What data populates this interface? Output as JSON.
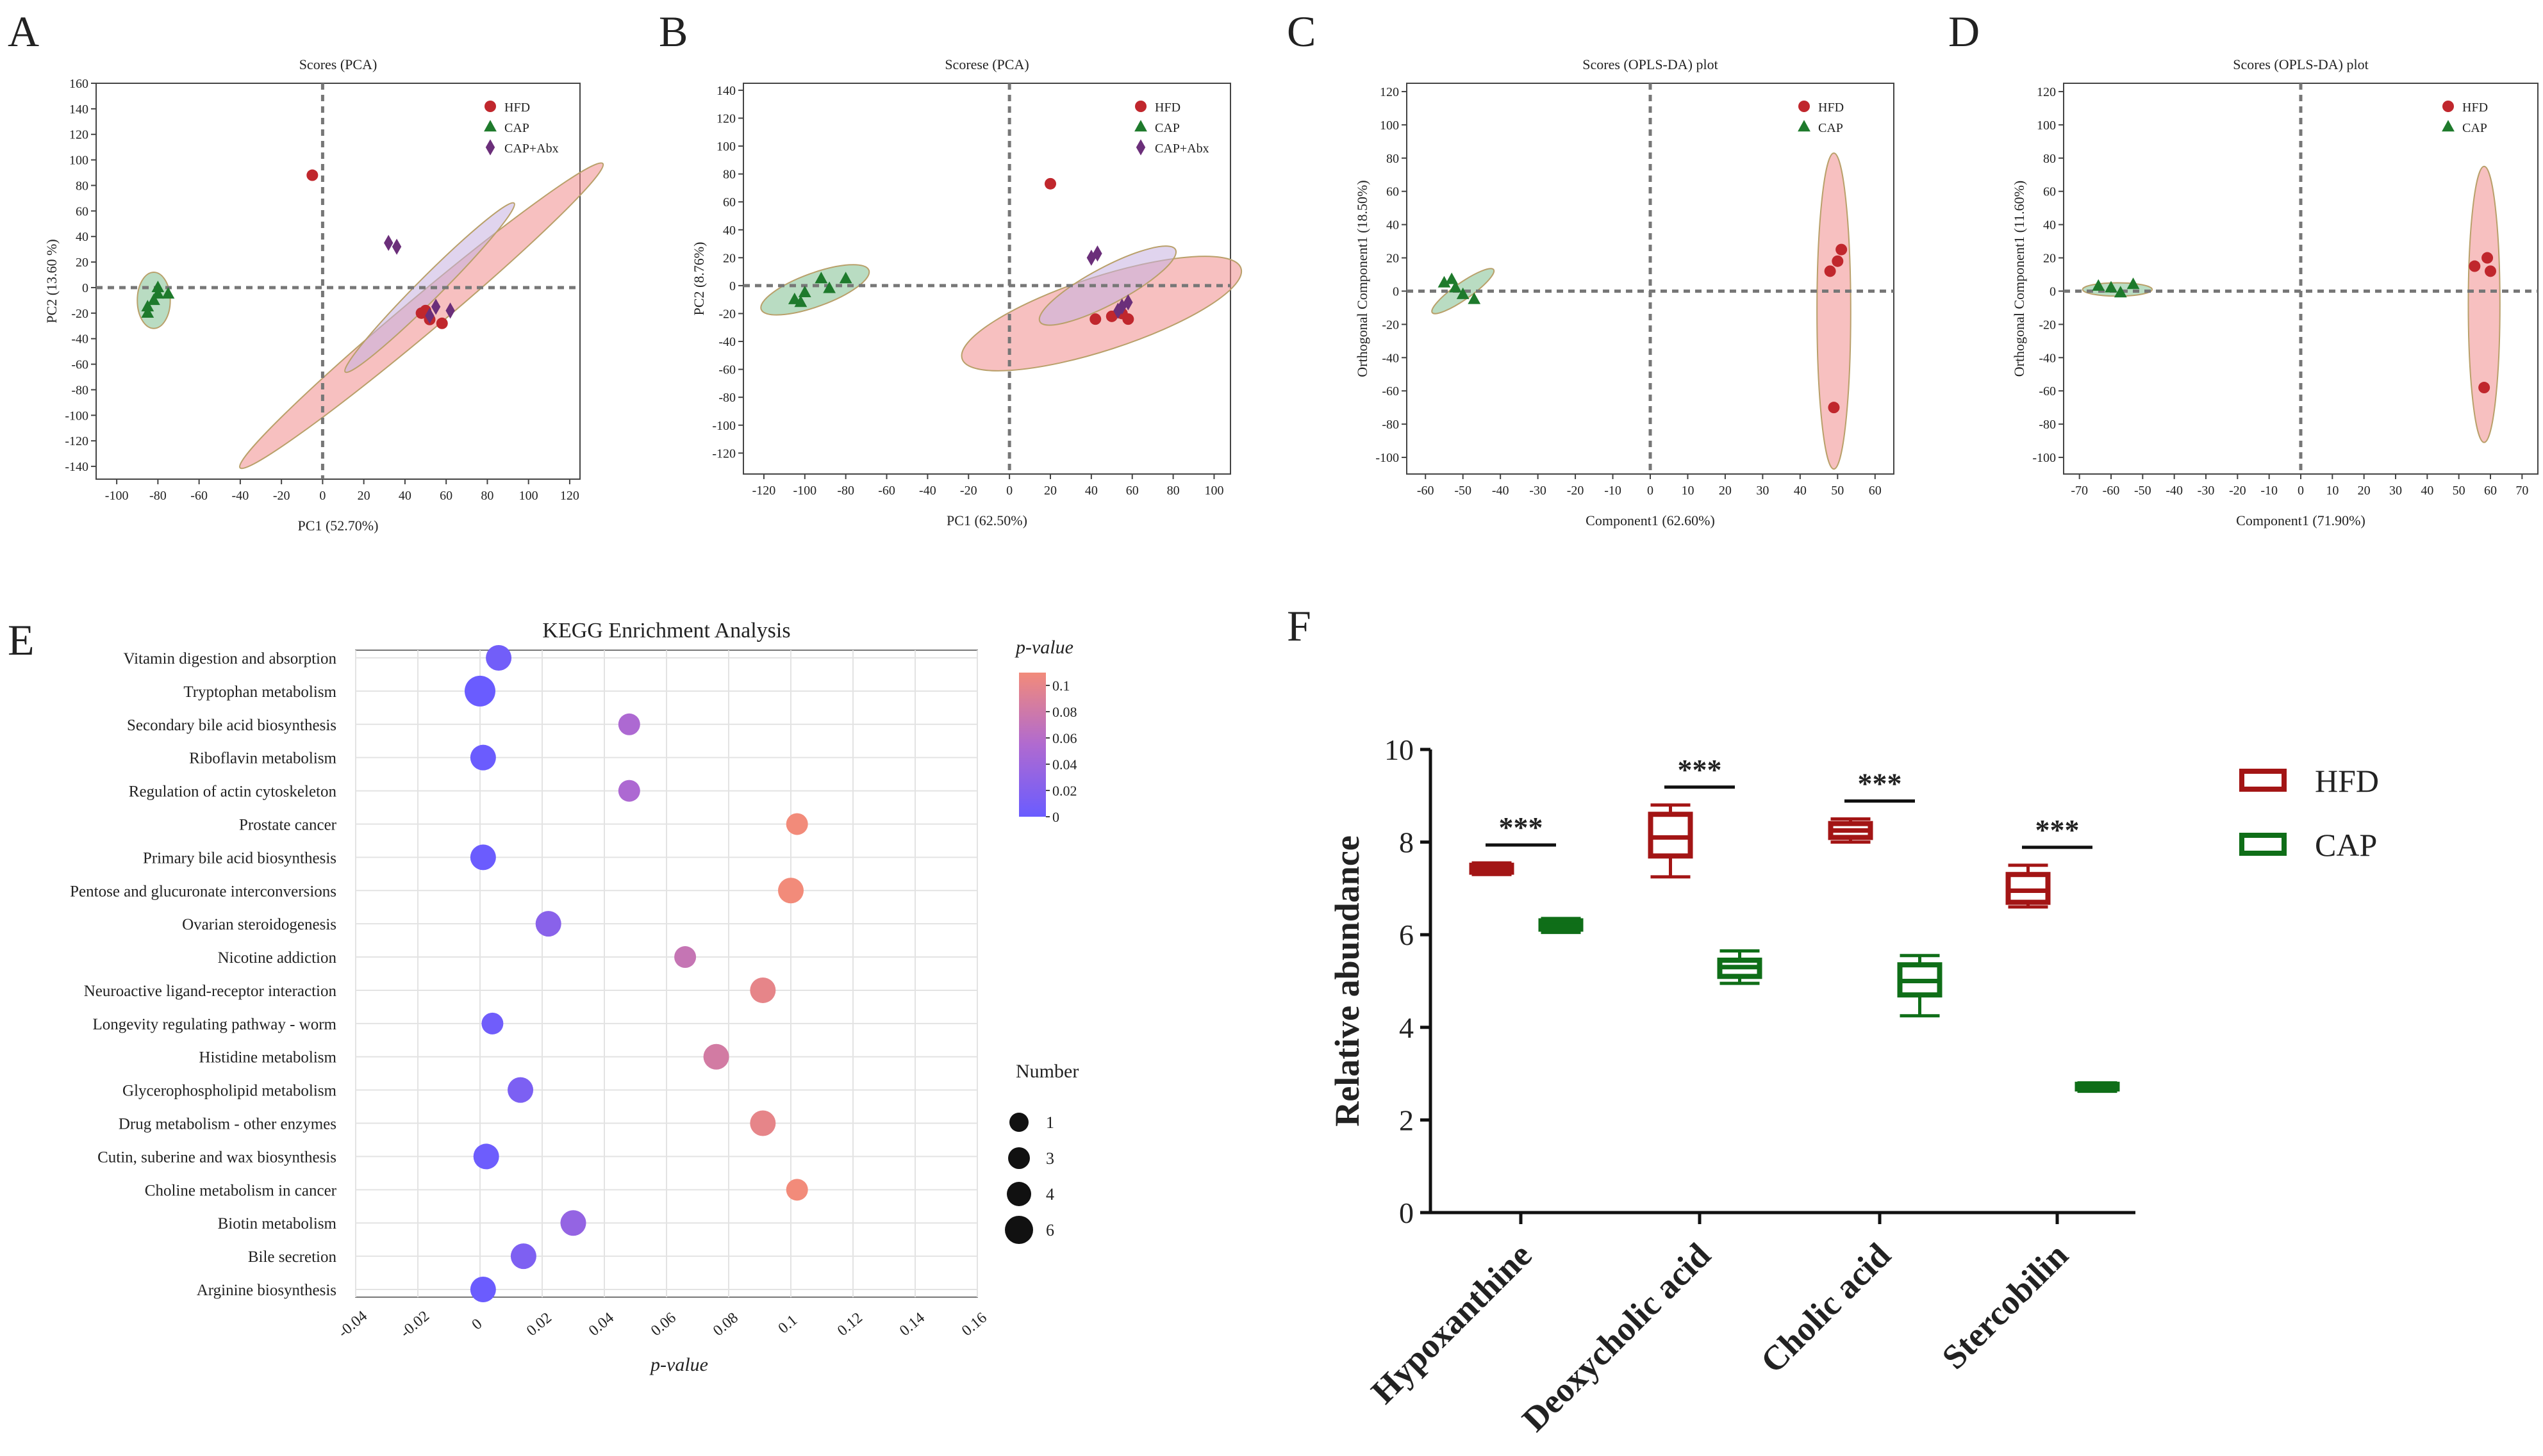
{
  "figure": {
    "panel_letters": [
      "A",
      "B",
      "C",
      "D",
      "E",
      "F"
    ]
  },
  "colors": {
    "hfd": "#c0272d",
    "cap": "#1e7a2c",
    "capabx": "#6b2f7a",
    "hfd_ellipse": "#f08c8c",
    "cap_ellipse": "#7fbf8f",
    "capabx_ellipse": "#c7b0e0",
    "box_hfd": "#a31515",
    "box_cap": "#0f6e18",
    "grad_low": "#6a5cff",
    "grad_mid": "#b06ad0",
    "grad_high": "#f28b7a"
  },
  "chart_data": [
    {
      "panel": "A",
      "type": "scatter",
      "title": "Scores (PCA)",
      "xlabel": "PC1 (52.70%)",
      "ylabel": "PC2 (13.60 %)",
      "xlim": [
        -110,
        125
      ],
      "ylim": [
        -150,
        160
      ],
      "xticks": [
        -100,
        -80,
        -60,
        -40,
        -20,
        0,
        20,
        40,
        60,
        80,
        100,
        120
      ],
      "yticks": [
        160,
        140,
        120,
        100,
        80,
        60,
        40,
        20,
        0,
        -20,
        -40,
        -60,
        -80,
        -100,
        -120,
        -140
      ],
      "legend": [
        "HFD",
        "CAP",
        "CAP+Abx"
      ],
      "series": [
        {
          "name": "HFD",
          "marker": "circle",
          "points": [
            [
              -5,
              88
            ],
            [
              48,
              -20
            ],
            [
              52,
              -25
            ],
            [
              58,
              -28
            ],
            [
              50,
              -18
            ]
          ]
        },
        {
          "name": "CAP",
          "marker": "triangle",
          "points": [
            [
              -85,
              -15
            ],
            [
              -82,
              -10
            ],
            [
              -80,
              -5
            ],
            [
              -75,
              -5
            ],
            [
              -80,
              0
            ],
            [
              -85,
              -20
            ]
          ]
        },
        {
          "name": "CAP+Abx",
          "marker": "diamond",
          "points": [
            [
              32,
              35
            ],
            [
              36,
              32
            ],
            [
              55,
              -15
            ],
            [
              62,
              -18
            ],
            [
              52,
              -22
            ]
          ]
        }
      ],
      "ellipses": [
        {
          "group": "CAP",
          "cx": -82,
          "cy": -10,
          "rx": 8,
          "ry": 22,
          "angle": 0
        },
        {
          "group": "HFD",
          "cx": 48,
          "cy": -22,
          "rx": 115,
          "ry": 14,
          "angle": -40
        },
        {
          "group": "CAP+Abx",
          "cx": 52,
          "cy": 0,
          "rx": 58,
          "ry": 9,
          "angle": -45
        }
      ]
    },
    {
      "panel": "B",
      "type": "scatter",
      "title": "Scorese (PCA)",
      "xlabel": "PC1 (62.50%)",
      "ylabel": "PC2 (8.76%)",
      "xlim": [
        -130,
        108
      ],
      "ylim": [
        -135,
        145
      ],
      "xticks": [
        -120,
        -100,
        -80,
        -60,
        -40,
        -20,
        0,
        20,
        40,
        60,
        80,
        100
      ],
      "yticks": [
        140,
        120,
        100,
        80,
        60,
        40,
        20,
        0,
        -20,
        -40,
        -60,
        -80,
        -100,
        -120
      ],
      "legend": [
        "HFD",
        "CAP",
        "CAP+Abx"
      ],
      "series": [
        {
          "name": "HFD",
          "marker": "circle",
          "points": [
            [
              20,
              73
            ],
            [
              42,
              -24
            ],
            [
              50,
              -22
            ],
            [
              58,
              -24
            ],
            [
              55,
              -20
            ]
          ]
        },
        {
          "name": "CAP",
          "marker": "triangle",
          "points": [
            [
              -105,
              -10
            ],
            [
              -100,
              -5
            ],
            [
              -92,
              5
            ],
            [
              -88,
              -2
            ],
            [
              -80,
              5
            ],
            [
              -102,
              -12
            ]
          ]
        },
        {
          "name": "CAP+Abx",
          "marker": "diamond",
          "points": [
            [
              40,
              20
            ],
            [
              43,
              23
            ],
            [
              55,
              -15
            ],
            [
              58,
              -12
            ],
            [
              53,
              -18
            ]
          ]
        }
      ],
      "ellipses": [
        {
          "group": "CAP",
          "cx": -95,
          "cy": -3,
          "rx": 28,
          "ry": 12,
          "angle": -20
        },
        {
          "group": "HFD",
          "cx": 45,
          "cy": -20,
          "rx": 18,
          "ry": 105,
          "angle": -18
        },
        {
          "group": "CAP+Abx",
          "cx": 48,
          "cy": 0,
          "rx": 9,
          "ry": 55,
          "angle": -28
        }
      ]
    },
    {
      "panel": "C",
      "type": "scatter",
      "title": "Scores (OPLS-DA) plot",
      "xlabel": "Component1 (62.60%)",
      "ylabel": "Orthogonal Component1 (18.50%)",
      "xlim": [
        -65,
        65
      ],
      "ylim": [
        -110,
        125
      ],
      "xticks": [
        -60,
        -50,
        -40,
        -30,
        -20,
        -10,
        0,
        10,
        20,
        30,
        40,
        50,
        60
      ],
      "yticks": [
        120,
        100,
        80,
        60,
        40,
        20,
        0,
        -20,
        -40,
        -60,
        -80,
        -100
      ],
      "legend": [
        "HFD",
        "CAP"
      ],
      "series": [
        {
          "name": "HFD",
          "marker": "circle",
          "points": [
            [
              50,
              18
            ],
            [
              51,
              25
            ],
            [
              48,
              12
            ],
            [
              49,
              -70
            ]
          ]
        },
        {
          "name": "CAP",
          "marker": "triangle",
          "points": [
            [
              -55,
              5
            ],
            [
              -52,
              2
            ],
            [
              -50,
              -2
            ],
            [
              -47,
              -5
            ],
            [
              -53,
              7
            ]
          ]
        }
      ],
      "ellipses": [
        {
          "group": "CAP",
          "cx": -50,
          "cy": 0,
          "rx": 10,
          "ry": 5,
          "angle": -35
        },
        {
          "group": "HFD",
          "cx": 49,
          "cy": -12,
          "rx": 4.5,
          "ry": 95,
          "angle": 0
        }
      ]
    },
    {
      "panel": "D",
      "type": "scatter",
      "title": "Scores (OPLS-DA) plot",
      "xlabel": "Component1 (71.90%)",
      "ylabel": "Orthogonal Component1 (11.60%)",
      "xlim": [
        -75,
        75
      ],
      "ylim": [
        -110,
        125
      ],
      "xticks": [
        -70,
        -60,
        -50,
        -40,
        -30,
        -20,
        -10,
        0,
        10,
        20,
        30,
        40,
        50,
        60,
        70
      ],
      "yticks": [
        120,
        100,
        80,
        60,
        40,
        20,
        0,
        -20,
        -40,
        -60,
        -80,
        -100
      ],
      "legend": [
        "HFD",
        "CAP"
      ],
      "series": [
        {
          "name": "HFD",
          "marker": "circle",
          "points": [
            [
              55,
              15
            ],
            [
              59,
              20
            ],
            [
              60,
              12
            ],
            [
              58,
              -58
            ]
          ]
        },
        {
          "name": "CAP",
          "marker": "triangle",
          "points": [
            [
              -64,
              3
            ],
            [
              -60,
              2
            ],
            [
              -57,
              -1
            ],
            [
              -53,
              4
            ]
          ]
        }
      ],
      "ellipses": [
        {
          "group": "CAP",
          "cx": -58,
          "cy": 1,
          "rx": 11,
          "ry": 4,
          "angle": 0
        },
        {
          "group": "HFD",
          "cx": 58,
          "cy": -8,
          "rx": 5,
          "ry": 83,
          "angle": 0
        }
      ]
    },
    {
      "panel": "E",
      "type": "scatter",
      "title": "KEGG Enrichment Analysis",
      "xlabel": "p-value",
      "xlim": [
        -0.04,
        0.16
      ],
      "xticks": [
        "-0.04",
        "-0.02",
        "0",
        "0.02",
        "0.04",
        "0.06",
        "0.08",
        "0.1",
        "0.12",
        "0.14",
        "0.16"
      ],
      "color_label": "p-value",
      "color_ticks": [
        "0.1",
        "0.08",
        "0.06",
        "0.04",
        "0.02",
        "0"
      ],
      "size_label": "Number",
      "size_ticks": [
        "1",
        "3",
        "4",
        "6"
      ],
      "categories": [
        "Vitamin digestion and absorption",
        "Tryptophan metabolism",
        "Secondary bile acid biosynthesis",
        "Riboflavin metabolism",
        "Regulation of actin cytoskeleton",
        "Prostate cancer",
        "Primary bile acid biosynthesis",
        "Pentose and glucuronate interconversions",
        "Ovarian steroidogenesis",
        "Nicotine addiction",
        "Neuroactive ligand-receptor interaction",
        "Longevity regulating pathway - worm",
        "Histidine metabolism",
        "Glycerophospholipid metabolism",
        "Drug metabolism - other enzymes",
        "Cutin, suberine and wax biosynthesis",
        "Choline metabolism in cancer",
        "Biotin metabolism",
        "Bile secretion",
        "Arginine biosynthesis"
      ],
      "points": [
        {
          "term": "Vitamin digestion and absorption",
          "p": 0.006,
          "n": 4
        },
        {
          "term": "Tryptophan metabolism",
          "p": 0.0,
          "n": 6
        },
        {
          "term": "Secondary bile acid biosynthesis",
          "p": 0.048,
          "n": 3
        },
        {
          "term": "Riboflavin metabolism",
          "p": 0.001,
          "n": 4
        },
        {
          "term": "Regulation of actin cytoskeleton",
          "p": 0.048,
          "n": 3
        },
        {
          "term": "Prostate cancer",
          "p": 0.102,
          "n": 3
        },
        {
          "term": "Primary bile acid biosynthesis",
          "p": 0.001,
          "n": 4
        },
        {
          "term": "Pentose and glucuronate interconversions",
          "p": 0.1,
          "n": 4
        },
        {
          "term": "Ovarian steroidogenesis",
          "p": 0.022,
          "n": 4
        },
        {
          "term": "Nicotine addiction",
          "p": 0.066,
          "n": 3
        },
        {
          "term": "Neuroactive ligand-receptor interaction",
          "p": 0.091,
          "n": 4
        },
        {
          "term": "Longevity regulating pathway - worm",
          "p": 0.004,
          "n": 3
        },
        {
          "term": "Histidine metabolism",
          "p": 0.076,
          "n": 4
        },
        {
          "term": "Glycerophospholipid metabolism",
          "p": 0.013,
          "n": 4
        },
        {
          "term": "Drug metabolism - other enzymes",
          "p": 0.091,
          "n": 4
        },
        {
          "term": "Cutin, suberine and wax biosynthesis",
          "p": 0.002,
          "n": 4
        },
        {
          "term": "Choline metabolism in cancer",
          "p": 0.102,
          "n": 3
        },
        {
          "term": "Biotin metabolism",
          "p": 0.03,
          "n": 4
        },
        {
          "term": "Bile secretion",
          "p": 0.014,
          "n": 4
        },
        {
          "term": "Arginine biosynthesis",
          "p": 0.001,
          "n": 4
        }
      ]
    },
    {
      "panel": "F",
      "type": "box",
      "ylabel": "Relative abundance",
      "ylim": [
        0,
        10
      ],
      "yticks": [
        "0",
        "2",
        "4",
        "6",
        "8",
        "10"
      ],
      "categories": [
        "Hypoxanthine",
        "Deoxycholic acid",
        "Cholic acid",
        "Stercobilin"
      ],
      "legend": [
        "HFD",
        "CAP"
      ],
      "significance": [
        "***",
        "***",
        "***",
        "***"
      ],
      "series": [
        {
          "name": "HFD",
          "boxes": [
            {
              "min": 7.3,
              "q1": 7.35,
              "median": 7.4,
              "q3": 7.5,
              "max": 7.55
            },
            {
              "min": 7.25,
              "q1": 7.7,
              "median": 8.1,
              "q3": 8.6,
              "max": 8.8
            },
            {
              "min": 8.0,
              "q1": 8.1,
              "median": 8.25,
              "q3": 8.4,
              "max": 8.5
            },
            {
              "min": 6.6,
              "q1": 6.7,
              "median": 6.95,
              "q3": 7.3,
              "max": 7.5
            }
          ]
        },
        {
          "name": "CAP",
          "boxes": [
            {
              "min": 6.05,
              "q1": 6.12,
              "median": 6.2,
              "q3": 6.3,
              "max": 6.35
            },
            {
              "min": 4.95,
              "q1": 5.1,
              "median": 5.3,
              "q3": 5.45,
              "max": 5.65
            },
            {
              "min": 4.25,
              "q1": 4.7,
              "median": 5.0,
              "q3": 5.35,
              "max": 5.55
            },
            {
              "min": 2.62,
              "q1": 2.67,
              "median": 2.72,
              "q3": 2.77,
              "max": 2.8
            }
          ]
        }
      ]
    }
  ]
}
